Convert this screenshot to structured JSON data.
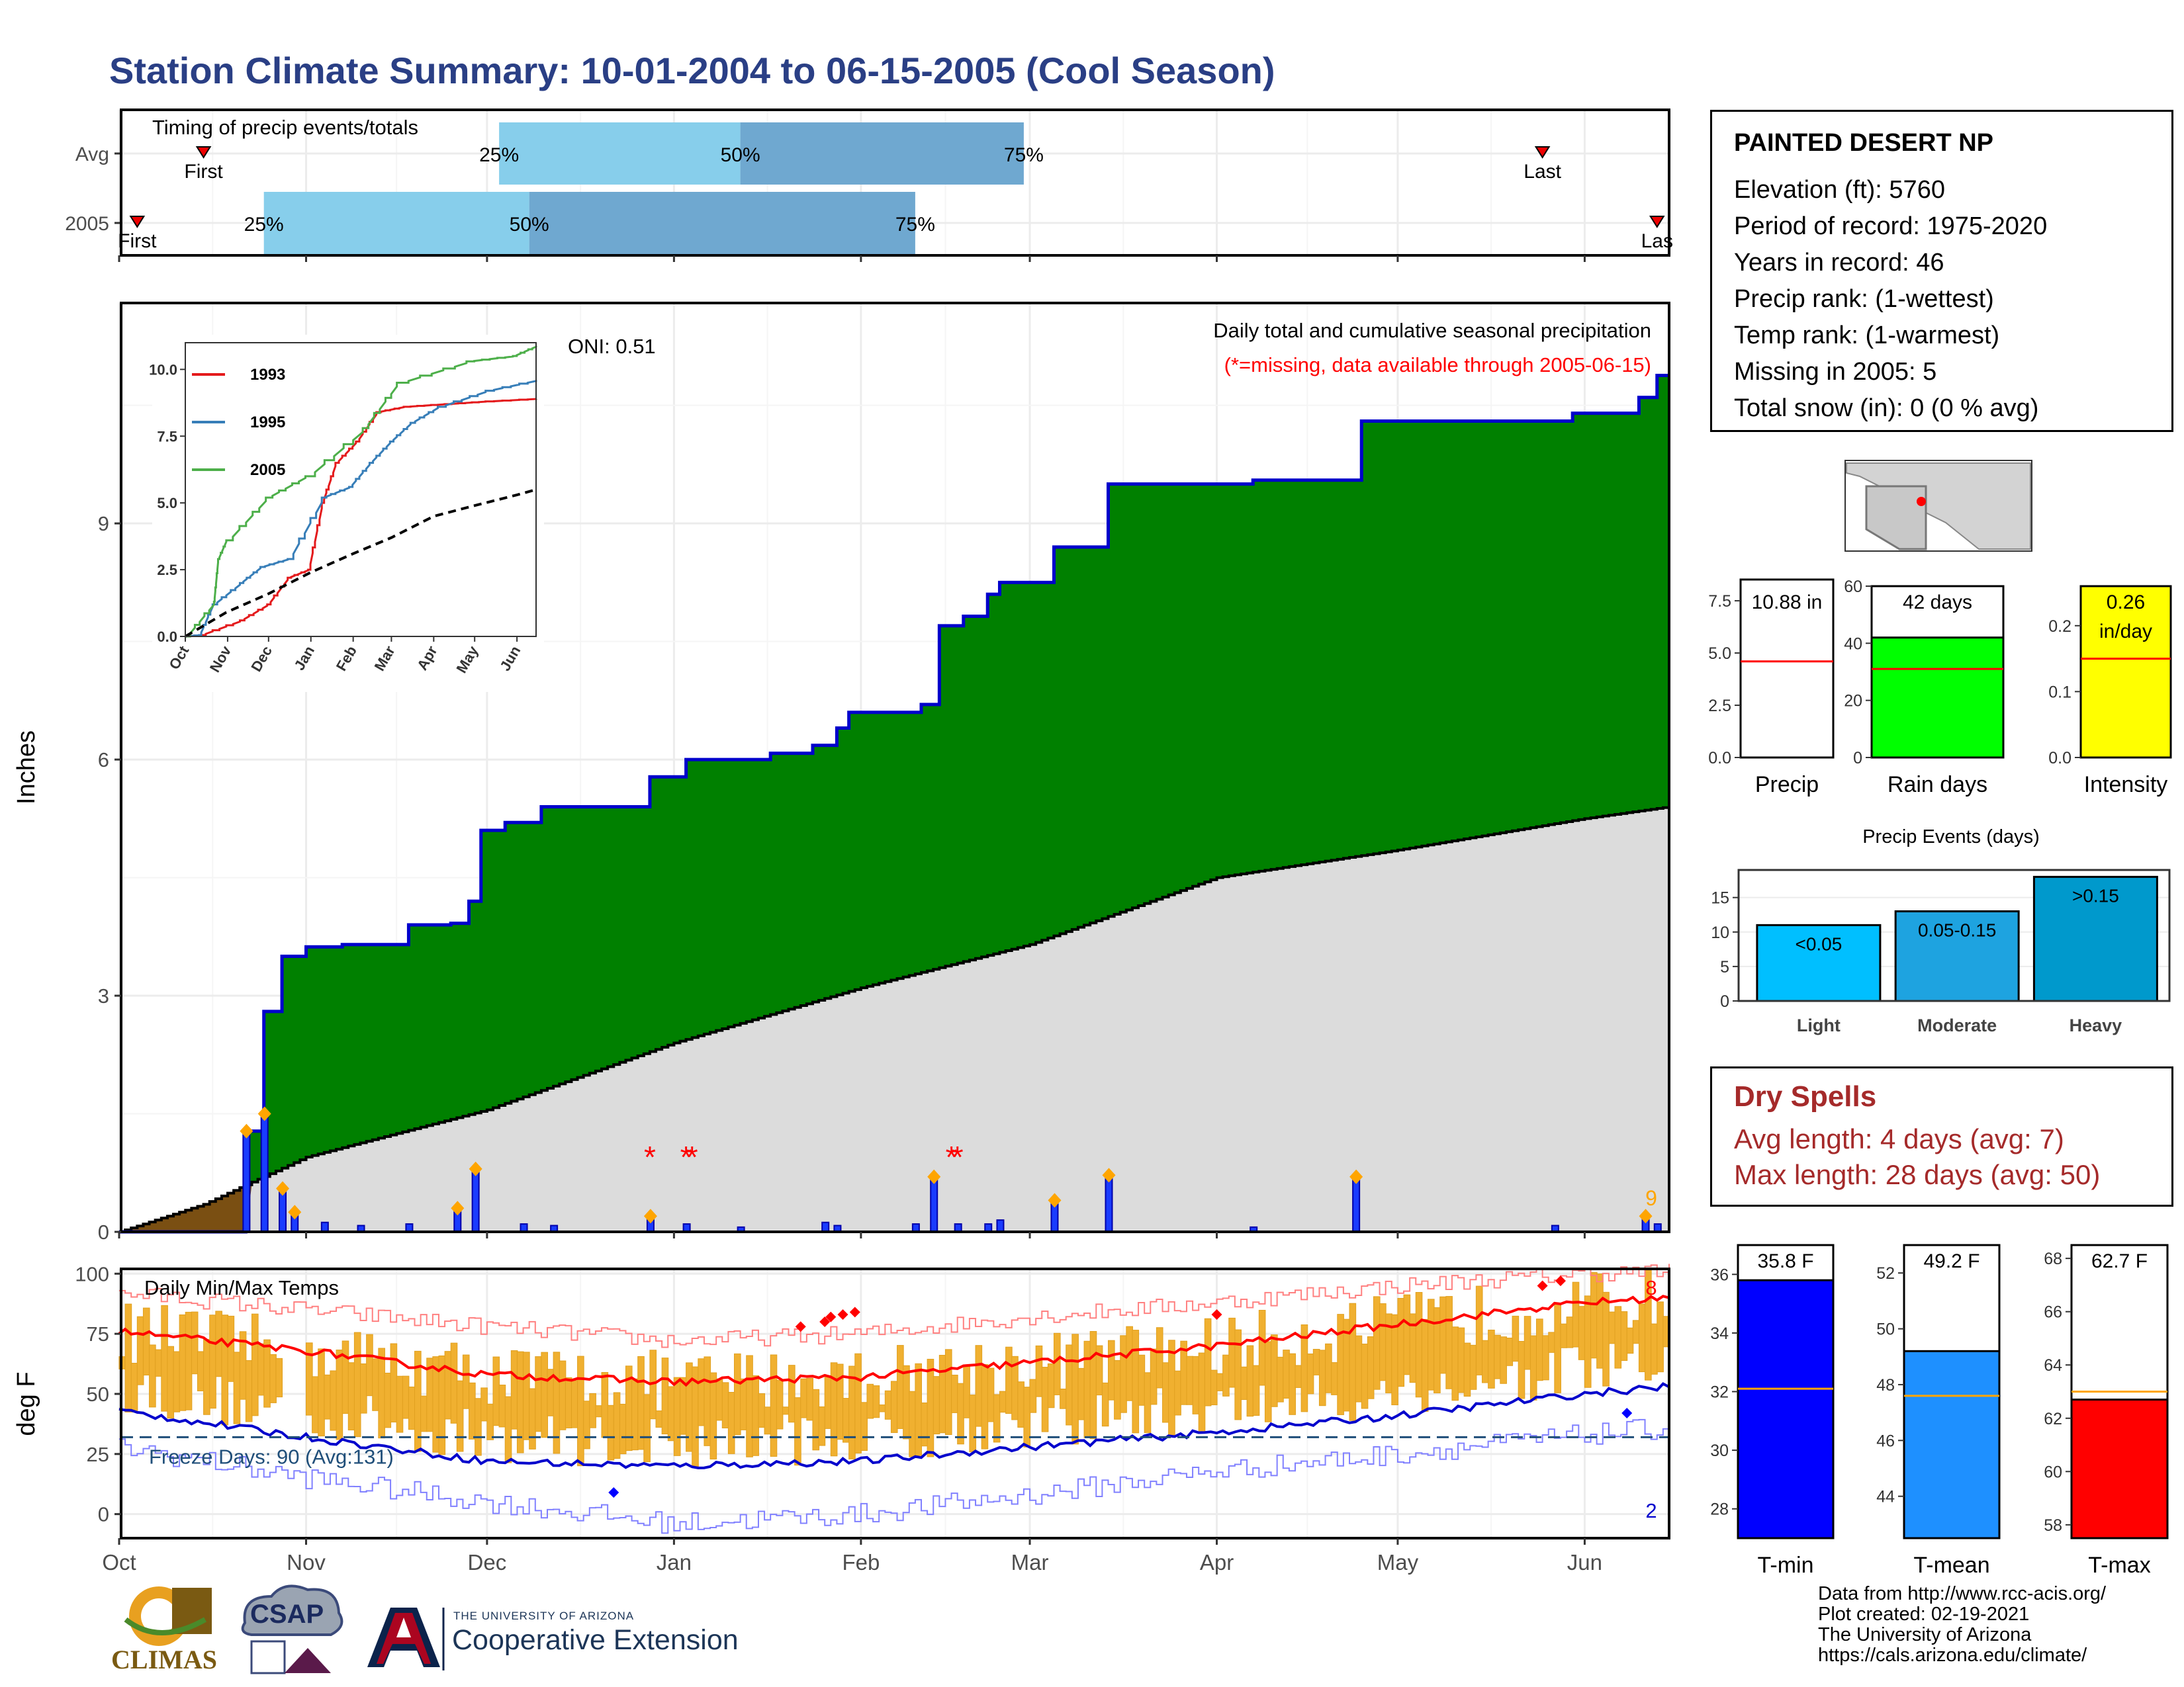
{
  "title": "Station Climate Summary: 10-01-2004 to 06-15-2005 (Cool Season)",
  "station": {
    "name": "PAINTED DESERT NP",
    "lines": [
      "Elevation (ft): 5760",
      "Period of record: 1975-2020",
      "Years in record: 46",
      "Precip rank:  (1-wettest)",
      "Temp rank:  (1-warmest)",
      "Missing in 2005: 5",
      "Total snow (in): 0 (0 % avg)"
    ]
  },
  "dry_spells": {
    "heading": "Dry Spells",
    "avg": "Avg length: 4 days (avg: 7)",
    "max": "Max length: 28 days (avg: 50)"
  },
  "credits": [
    "Data from http://www.rcc-acis.org/",
    "Plot created: 02-19-2021",
    "The University of Arizona",
    "https://cals.arizona.edu/climate/"
  ],
  "logos": {
    "climas": "CLIMAS",
    "csap": "CSAP",
    "coop_small": "THE UNIVERSITY OF ARIZONA",
    "coop_large": "Cooperative Extension"
  },
  "colors": {
    "title": "#2a3f85",
    "precip_fill": "#008000",
    "precip_line": "#0000cc",
    "avg_fill": "#dcdcdc",
    "missing_fill": "#7a4f12",
    "temp_bar": "#f0b030",
    "tmax_line": "#ff0000",
    "tmin_line": "#0000cc",
    "q25": "#87ceeb",
    "q50": "#6fa8d0"
  },
  "chart_data": [
    {
      "type": "bar",
      "name": "timing",
      "title": "Timing of precip events/totals",
      "categories": [
        "Avg",
        "2005"
      ],
      "first_label": "First",
      "last_label": "Last",
      "last_label_2005": "Las",
      "rows": [
        {
          "label": "Avg",
          "first": "2004-10-15",
          "q25": "2004-12-03",
          "q50": "2005-01-12",
          "q75": "2005-02-28",
          "last": "2005-05-25",
          "q25_label": "25%",
          "q50_label": "50%",
          "q75_label": "75%"
        },
        {
          "label": "2005",
          "first": "2004-10-04",
          "q25": "2004-10-25",
          "q50": "2004-12-08",
          "q75": "2005-02-10",
          "last": "2005-06-13",
          "q25_label": "25%",
          "q50_label": "50%",
          "q75_label": "75%"
        }
      ]
    },
    {
      "type": "area",
      "name": "cumulative-precip",
      "title": "Daily total and cumulative seasonal precipitation",
      "subtitle": "(*=missing, data available through 2005-06-15)",
      "oni": "ONI: 0.51",
      "ylabel": "Inches",
      "ylim": [
        0,
        11.8
      ],
      "yticks": [
        0,
        3,
        6,
        9
      ],
      "xticks": [
        "Oct",
        "Nov",
        "Dec",
        "Jan",
        "Feb",
        "Mar",
        "Apr",
        "May",
        "Jun"
      ],
      "corner_count": "9",
      "cumulative_steps": [
        [
          "2004-10-01",
          0
        ],
        [
          "2004-10-22",
          1.28
        ],
        [
          "2004-10-25",
          2.8
        ],
        [
          "2004-10-28",
          3.5
        ],
        [
          "2004-11-01",
          3.62
        ],
        [
          "2004-11-07",
          3.65
        ],
        [
          "2004-11-18",
          3.9
        ],
        [
          "2004-11-25",
          3.92
        ],
        [
          "2004-11-28",
          4.2
        ],
        [
          "2004-11-30",
          5.1
        ],
        [
          "2004-12-04",
          5.2
        ],
        [
          "2004-12-10",
          5.4
        ],
        [
          "2004-12-28",
          5.78
        ],
        [
          "2005-01-03",
          6.0
        ],
        [
          "2005-01-17",
          6.08
        ],
        [
          "2005-01-24",
          6.18
        ],
        [
          "2005-01-28",
          6.4
        ],
        [
          "2005-01-30",
          6.6
        ],
        [
          "2005-02-11",
          6.7
        ],
        [
          "2005-02-14",
          7.7
        ],
        [
          "2005-02-18",
          7.82
        ],
        [
          "2005-02-22",
          8.1
        ],
        [
          "2005-02-24",
          8.25
        ],
        [
          "2005-03-05",
          8.7
        ],
        [
          "2005-03-14",
          9.5
        ],
        [
          "2005-04-07",
          9.55
        ],
        [
          "2005-04-25",
          10.3
        ],
        [
          "2005-05-30",
          10.4
        ],
        [
          "2005-06-10",
          10.6
        ],
        [
          "2005-06-13",
          10.88
        ]
      ],
      "avg_cumulative": [
        [
          "2004-10-01",
          0
        ],
        [
          "2004-10-15",
          0.35
        ],
        [
          "2004-11-01",
          0.95
        ],
        [
          "2004-12-01",
          1.55
        ],
        [
          "2005-01-01",
          2.4
        ],
        [
          "2005-02-01",
          3.1
        ],
        [
          "2005-03-01",
          3.65
        ],
        [
          "2005-04-01",
          4.5
        ],
        [
          "2005-05-01",
          4.85
        ],
        [
          "2005-06-01",
          5.25
        ],
        [
          "2005-06-15",
          5.4
        ]
      ],
      "missing_fill_through": "2004-10-21",
      "daily_bars": [
        [
          "2004-10-22",
          1.28
        ],
        [
          "2004-10-25",
          1.5
        ],
        [
          "2004-10-28",
          0.55
        ],
        [
          "2004-10-30",
          0.25
        ],
        [
          "2004-11-04",
          0.12
        ],
        [
          "2004-11-10",
          0.08
        ],
        [
          "2004-11-18",
          0.1
        ],
        [
          "2004-11-26",
          0.3
        ],
        [
          "2004-11-29",
          0.8
        ],
        [
          "2004-12-07",
          0.1
        ],
        [
          "2004-12-12",
          0.08
        ],
        [
          "2004-12-28",
          0.2
        ],
        [
          "2005-01-03",
          0.1
        ],
        [
          "2005-01-12",
          0.06
        ],
        [
          "2005-01-26",
          0.12
        ],
        [
          "2005-01-28",
          0.08
        ],
        [
          "2005-02-10",
          0.1
        ],
        [
          "2005-02-13",
          0.7
        ],
        [
          "2005-02-17",
          0.1
        ],
        [
          "2005-02-22",
          0.1
        ],
        [
          "2005-02-24",
          0.15
        ],
        [
          "2005-03-05",
          0.4
        ],
        [
          "2005-03-14",
          0.72
        ],
        [
          "2005-04-07",
          0.06
        ],
        [
          "2005-04-24",
          0.7
        ],
        [
          "2005-05-27",
          0.08
        ],
        [
          "2005-06-11",
          0.2
        ],
        [
          "2005-06-13",
          0.1
        ]
      ],
      "missing_days": [
        "2004-12-28",
        "2005-01-03",
        "2005-01-04",
        "2005-02-16",
        "2005-02-17"
      ],
      "inset": {
        "type": "line",
        "yticks": [
          "0.0",
          "2.5",
          "5.0",
          "7.5",
          "10.0"
        ],
        "xticks": [
          "Oct",
          "Nov",
          "Dec",
          "Jan",
          "Feb",
          "Mar",
          "Apr",
          "May",
          "Jun"
        ],
        "series": [
          {
            "name": "1993",
            "color": "#e41a1c",
            "points": [
              [
                0,
                0
              ],
              [
                10,
                0.05
              ],
              [
                40,
                0.6
              ],
              [
                60,
                1.2
              ],
              [
                75,
                2.2
              ],
              [
                90,
                2.5
              ],
              [
                100,
                5.0
              ],
              [
                110,
                6.5
              ],
              [
                125,
                7.3
              ],
              [
                140,
                8.4
              ],
              [
                160,
                8.6
              ],
              [
                190,
                8.7
              ],
              [
                220,
                8.8
              ],
              [
                257,
                8.9
              ]
            ]
          },
          {
            "name": "1995",
            "color": "#377eb8",
            "points": [
              [
                0,
                0
              ],
              [
                10,
                0.05
              ],
              [
                20,
                1.2
              ],
              [
                40,
                2.0
              ],
              [
                55,
                2.6
              ],
              [
                75,
                2.9
              ],
              [
                100,
                5.2
              ],
              [
                120,
                5.6
              ],
              [
                135,
                6.5
              ],
              [
                150,
                7.3
              ],
              [
                165,
                8.0
              ],
              [
                185,
                8.6
              ],
              [
                220,
                9.2
              ],
              [
                257,
                9.6
              ]
            ]
          },
          {
            "name": "2005",
            "color": "#4daf4a",
            "points": [
              [
                0,
                0
              ],
              [
                21,
                1.3
              ],
              [
                24,
                2.9
              ],
              [
                30,
                3.6
              ],
              [
                59,
                5.2
              ],
              [
                88,
                6.0
              ],
              [
                130,
                7.8
              ],
              [
                155,
                9.5
              ],
              [
                206,
                10.3
              ],
              [
                240,
                10.5
              ],
              [
                257,
                10.88
              ]
            ]
          }
        ],
        "avg_points": [
          [
            0,
            0
          ],
          [
            30,
            0.9
          ],
          [
            61,
            1.6
          ],
          [
            92,
            2.4
          ],
          [
            123,
            3.1
          ],
          [
            151,
            3.7
          ],
          [
            182,
            4.5
          ],
          [
            212,
            4.9
          ],
          [
            243,
            5.3
          ],
          [
            257,
            5.5
          ]
        ]
      }
    },
    {
      "type": "bar",
      "name": "season-summary",
      "panels": [
        {
          "label": "Precip",
          "value_label": "10.88 in",
          "value": 10.88,
          "avg": 4.6,
          "ylim": [
            0,
            8.2
          ],
          "yticks": [
            "0.0",
            "2.5",
            "5.0",
            "7.5"
          ],
          "tickvals": [
            0,
            2.5,
            5,
            7.5
          ],
          "fill": "#ffffff"
        },
        {
          "label": "Rain days",
          "value_label": "42 days",
          "value": 42,
          "avg": 31,
          "ylim": [
            0,
            60
          ],
          "yticks": [
            "0",
            "20",
            "40",
            "60"
          ],
          "tickvals": [
            0,
            20,
            40,
            60
          ],
          "fill": "#00ff00"
        },
        {
          "label": "Intensity",
          "value_label": "0.26",
          "value_label2": "in/day",
          "value": 0.26,
          "avg": 0.15,
          "ylim": [
            0,
            0.26
          ],
          "yticks": [
            "0.0",
            "0.1",
            "0.2"
          ],
          "tickvals": [
            0,
            0.1,
            0.2
          ],
          "fill": "#ffff00"
        }
      ]
    },
    {
      "type": "bar",
      "name": "precip-events",
      "title": "Precip Events (days)",
      "categories": [
        "Light",
        "Moderate",
        "Heavy"
      ],
      "bar_labels": [
        "<0.05",
        "0.05-0.15",
        ">0.15"
      ],
      "values": [
        11,
        13,
        18
      ],
      "colors": [
        "#00bfff",
        "#1ea3e0",
        "#0099cc"
      ],
      "ylim": [
        0,
        18
      ],
      "yticks": [
        0,
        5,
        10,
        15
      ]
    },
    {
      "type": "line",
      "name": "daily-temps",
      "title": "Daily Min/Max Temps",
      "ylabel": "deg F",
      "ylim": [
        -10,
        102
      ],
      "yticks": [
        0,
        25,
        50,
        75,
        100
      ],
      "xticks": [
        "Oct",
        "Nov",
        "Dec",
        "Jan",
        "Feb",
        "Mar",
        "Apr",
        "May",
        "Jun"
      ],
      "freeze_line": 32,
      "freeze_label": "Freeze Days: 90 (Avg:131)",
      "record_high_count": "8",
      "record_low_count": "2",
      "tmax_normal": [
        [
          0,
          76
        ],
        [
          31,
          68
        ],
        [
          61,
          58
        ],
        [
          92,
          55
        ],
        [
          123,
          57
        ],
        [
          151,
          63
        ],
        [
          182,
          70
        ],
        [
          212,
          79
        ],
        [
          243,
          88
        ],
        [
          257,
          90
        ]
      ],
      "tmin_normal": [
        [
          0,
          43
        ],
        [
          31,
          32
        ],
        [
          61,
          22
        ],
        [
          92,
          20
        ],
        [
          123,
          22
        ],
        [
          151,
          28
        ],
        [
          182,
          34
        ],
        [
          212,
          41
        ],
        [
          243,
          50
        ],
        [
          257,
          53
        ]
      ],
      "tmax_record": [
        [
          0,
          92
        ],
        [
          31,
          85
        ],
        [
          61,
          78
        ],
        [
          92,
          72
        ],
        [
          123,
          75
        ],
        [
          151,
          82
        ],
        [
          182,
          88
        ],
        [
          212,
          95
        ],
        [
          243,
          100
        ],
        [
          257,
          101
        ]
      ],
      "tmin_record": [
        [
          0,
          28
        ],
        [
          31,
          15
        ],
        [
          61,
          5
        ],
        [
          92,
          -4
        ],
        [
          123,
          0
        ],
        [
          151,
          8
        ],
        [
          182,
          18
        ],
        [
          212,
          25
        ],
        [
          243,
          33
        ],
        [
          257,
          36
        ]
      ]
    },
    {
      "type": "bar",
      "name": "temp-summary",
      "panels": [
        {
          "label": "T-min",
          "value_label": "35.8 F",
          "value": 35.8,
          "avg": 32.1,
          "ylim": [
            27,
            37
          ],
          "yticks": [
            "28",
            "30",
            "32",
            "34",
            "36"
          ],
          "tickvals": [
            28,
            30,
            32,
            34,
            36
          ],
          "fill": "#0000ff"
        },
        {
          "label": "T-mean",
          "value_label": "49.2 F",
          "value": 49.2,
          "avg": 47.6,
          "ylim": [
            42.5,
            53
          ],
          "yticks": [
            "44",
            "46",
            "48",
            "50",
            "52"
          ],
          "tickvals": [
            44,
            46,
            48,
            50,
            52
          ],
          "fill": "#1e90ff"
        },
        {
          "label": "T-max",
          "value_label": "62.7 F",
          "value": 62.7,
          "avg": 63.0,
          "ylim": [
            57.5,
            68.5
          ],
          "yticks": [
            "58",
            "60",
            "62",
            "64",
            "66",
            "68"
          ],
          "tickvals": [
            58,
            60,
            62,
            64,
            66,
            68
          ],
          "fill": "#ff0000"
        }
      ]
    }
  ]
}
